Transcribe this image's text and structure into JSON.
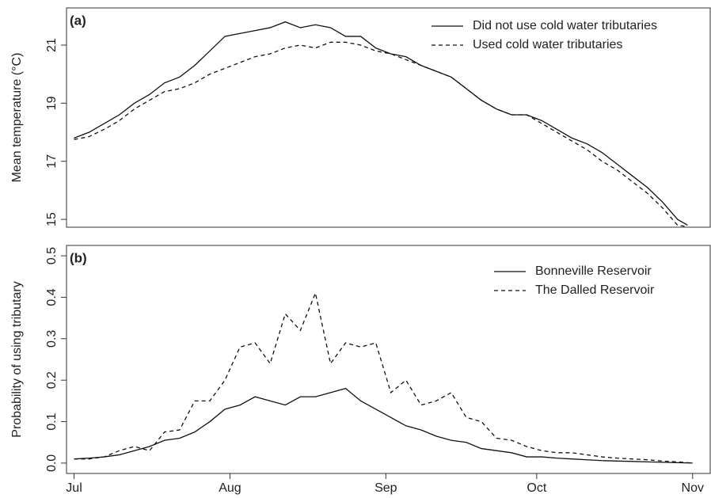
{
  "chart_data": [
    {
      "type": "line",
      "label": "(a)",
      "ylabel": "Mean temperature  (°C)",
      "x": [
        0,
        3,
        6,
        9,
        12,
        15,
        18,
        21,
        24,
        27,
        30,
        33,
        36,
        39,
        42,
        45,
        48,
        51,
        54,
        57,
        60,
        63,
        66,
        69,
        72,
        75,
        78,
        81,
        84,
        87,
        90,
        93,
        96,
        99,
        102,
        105,
        108,
        111,
        114,
        117,
        120,
        122
      ],
      "series": [
        {
          "name": "Did not use cold water tributaries",
          "color": "#111111",
          "linestyle": "solid",
          "values": [
            17.8,
            18.0,
            18.3,
            18.6,
            19.0,
            19.3,
            19.7,
            19.9,
            20.3,
            20.8,
            21.3,
            21.4,
            21.5,
            21.6,
            21.8,
            21.6,
            21.7,
            21.6,
            21.3,
            21.3,
            20.9,
            20.7,
            20.6,
            20.3,
            20.1,
            19.9,
            19.5,
            19.1,
            18.8,
            18.6,
            18.6,
            18.4,
            18.1,
            17.8,
            17.6,
            17.3,
            16.9,
            16.5,
            16.1,
            15.6,
            15.0,
            14.8
          ]
        },
        {
          "name": "Used cold water tributaries",
          "color": "#111111",
          "linestyle": "dashed",
          "values": [
            17.75,
            17.85,
            18.1,
            18.4,
            18.8,
            19.1,
            19.4,
            19.5,
            19.7,
            20.0,
            20.2,
            20.4,
            20.6,
            20.7,
            20.9,
            21.0,
            20.9,
            21.1,
            21.1,
            21.0,
            20.8,
            20.7,
            20.5,
            20.3,
            20.1,
            19.9,
            19.5,
            19.1,
            18.8,
            18.6,
            18.6,
            18.3,
            18.0,
            17.7,
            17.4,
            17.0,
            16.7,
            16.3,
            15.9,
            15.4,
            14.8,
            14.75
          ]
        }
      ],
      "xlim": [
        -1.5,
        126.5
      ],
      "ylim": [
        14.73,
        22.28
      ],
      "yticks": [
        15,
        17,
        19,
        21
      ],
      "legend": "top right"
    },
    {
      "type": "line",
      "label": "(b)",
      "ylabel": "Probability of using tributary",
      "x": [
        0,
        3,
        6,
        9,
        12,
        15,
        18,
        21,
        24,
        27,
        30,
        33,
        36,
        39,
        42,
        45,
        48,
        51,
        54,
        57,
        60,
        63,
        66,
        69,
        72,
        75,
        78,
        81,
        84,
        87,
        90,
        93,
        96,
        99,
        102,
        105,
        108,
        111,
        114,
        117,
        120,
        123
      ],
      "series": [
        {
          "name": "Bonneville Reservoir",
          "color": "#111111",
          "linestyle": "solid",
          "values": [
            0.01,
            0.012,
            0.015,
            0.02,
            0.03,
            0.04,
            0.055,
            0.06,
            0.075,
            0.1,
            0.13,
            0.14,
            0.16,
            0.15,
            0.14,
            0.16,
            0.16,
            0.17,
            0.18,
            0.15,
            0.13,
            0.11,
            0.09,
            0.08,
            0.065,
            0.055,
            0.05,
            0.035,
            0.03,
            0.025,
            0.015,
            0.015,
            0.012,
            0.01,
            0.008,
            0.006,
            0.005,
            0.004,
            0.003,
            0.002,
            0.001,
            0
          ]
        },
        {
          "name": "The Dalled Reservoir",
          "color": "#111111",
          "linestyle": "dashed",
          "values": [
            0.01,
            0.01,
            0.015,
            0.03,
            0.04,
            0.03,
            0.075,
            0.08,
            0.15,
            0.15,
            0.2,
            0.28,
            0.29,
            0.24,
            0.36,
            0.32,
            0.41,
            0.24,
            0.29,
            0.28,
            0.29,
            0.17,
            0.2,
            0.14,
            0.15,
            0.17,
            0.11,
            0.1,
            0.06,
            0.055,
            0.04,
            0.03,
            0.025,
            0.025,
            0.02,
            0.015,
            0.012,
            0.01,
            0.008,
            0.005,
            0.003,
            0
          ]
        }
      ],
      "xlim": [
        -1.5,
        126.5
      ],
      "ylim": [
        -0.025,
        0.525
      ],
      "yticks": [
        {
          "value": 0,
          "label": "0.0"
        },
        0.1,
        0.2,
        0.3,
        0.4,
        0.5
      ],
      "xticks": [
        {
          "value": 0,
          "label": "Jul"
        },
        {
          "value": 31,
          "label": "Aug"
        },
        {
          "value": 62,
          "label": "Sep"
        },
        {
          "value": 92,
          "label": "Oct"
        },
        {
          "value": 123,
          "label": "Nov"
        }
      ],
      "legend": "top right"
    }
  ]
}
